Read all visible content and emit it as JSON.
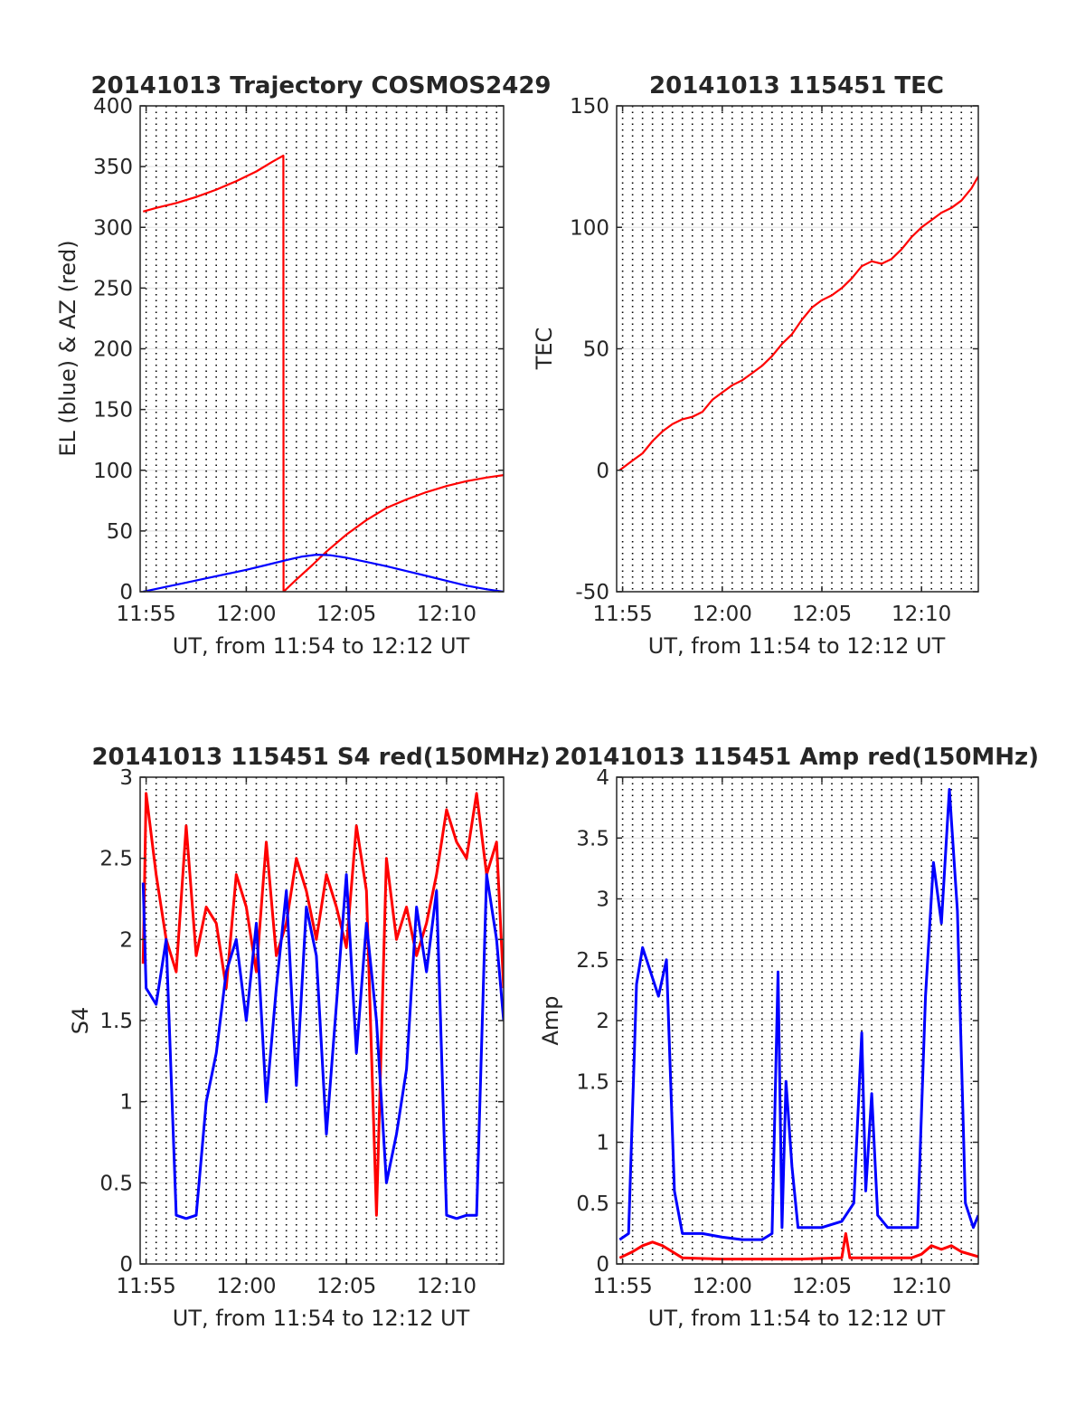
{
  "chart_data": [
    {
      "type": "line",
      "title": "20141013 Trajectory COSMOS2429",
      "xlabel": "UT, from 11:54 to 12:12 UT",
      "ylabel": "EL (blue) & AZ (red)",
      "xlim_minutes": [
        714.7,
        732.85
      ],
      "ylim": [
        0,
        400
      ],
      "xticks": [
        715,
        720,
        725,
        730
      ],
      "xtick_labels": [
        "11:55",
        "12:00",
        "12:05",
        "12:10"
      ],
      "yticks": [
        0,
        50,
        100,
        150,
        200,
        250,
        300,
        350,
        400
      ],
      "ytick_labels": [
        "0",
        "50",
        "100",
        "150",
        "200",
        "250",
        "300",
        "350",
        "400"
      ],
      "grid": "vertical dotted lines every 0.5 min, horizontal grid at y ticks",
      "series": [
        {
          "color": "#ff0000",
          "x_minutes": [
            714.85,
            715.5,
            716.5,
            717.5,
            718.5,
            719.5,
            720.5,
            721.3,
            721.85,
            721.86,
            722.5,
            723.3,
            724.0,
            725.0,
            726.0,
            727.0,
            728.0,
            729.0,
            730.0,
            731.0,
            732.0,
            732.85
          ],
          "y": [
            313,
            316,
            320,
            325,
            331,
            338,
            346,
            354,
            359,
            0,
            10,
            22,
            33,
            47,
            59,
            69,
            76,
            82,
            87,
            91,
            94,
            96
          ]
        },
        {
          "color": "#0000ff",
          "x_minutes": [
            714.85,
            716.0,
            717.0,
            718.0,
            719.0,
            720.0,
            721.0,
            722.0,
            722.8,
            723.5,
            724.2,
            725.0,
            726.0,
            727.0,
            728.0,
            729.0,
            730.0,
            731.0,
            732.0,
            732.85
          ],
          "y": [
            0,
            4,
            7.5,
            11,
            14.5,
            18,
            22,
            26,
            29,
            30.5,
            30,
            28,
            24.5,
            21,
            17,
            13,
            9,
            5,
            2,
            0
          ]
        }
      ]
    },
    {
      "type": "line",
      "title": "20141013 115451 TEC",
      "xlabel": "UT, from 11:54 to 12:12 UT",
      "ylabel": "TEC",
      "xlim_minutes": [
        714.7,
        732.85
      ],
      "ylim": [
        -50,
        150
      ],
      "xticks": [
        715,
        720,
        725,
        730
      ],
      "xtick_labels": [
        "11:55",
        "12:00",
        "12:05",
        "12:10"
      ],
      "yticks": [
        -50,
        0,
        50,
        100,
        150
      ],
      "ytick_labels": [
        "-50",
        "0",
        "50",
        "100",
        "150"
      ],
      "grid": "vertical dotted lines every 0.5 min, horizontal grid at y ticks",
      "series": [
        {
          "color": "#ff0000",
          "x_minutes": [
            714.85,
            715.5,
            716.0,
            716.5,
            717.0,
            717.5,
            718.0,
            718.5,
            719.0,
            719.5,
            720.0,
            720.5,
            721.0,
            721.5,
            722.0,
            722.5,
            723.0,
            723.5,
            724.0,
            724.5,
            725.0,
            725.5,
            726.0,
            726.5,
            727.0,
            727.5,
            728.0,
            728.5,
            729.0,
            729.5,
            730.0,
            730.5,
            731.0,
            731.5,
            732.0,
            732.5,
            732.85
          ],
          "y": [
            0,
            4,
            7,
            12,
            16,
            19,
            21,
            22,
            24,
            29,
            32,
            35,
            37,
            40,
            43,
            47,
            52,
            56,
            62,
            67,
            70,
            72,
            75,
            79,
            84,
            86,
            85,
            87,
            91,
            96,
            100,
            103,
            106,
            108,
            111,
            116,
            121
          ]
        }
      ]
    },
    {
      "type": "line",
      "title": "20141013 115451 S4 red(150MHz)",
      "xlabel": "UT, from 11:54 to 12:12 UT",
      "ylabel": "S4",
      "xlim_minutes": [
        714.7,
        732.85
      ],
      "ylim": [
        0,
        3
      ],
      "xticks": [
        715,
        720,
        725,
        730
      ],
      "xtick_labels": [
        "11:55",
        "12:00",
        "12:05",
        "12:10"
      ],
      "yticks": [
        0,
        0.5,
        1,
        1.5,
        2,
        2.5,
        3
      ],
      "ytick_labels": [
        "0",
        "0.5",
        "1",
        "1.5",
        "2",
        "2.5",
        "3"
      ],
      "grid": "vertical dotted lines every 0.5 min, horizontal grid at y ticks",
      "series": [
        {
          "color": "#ff0000",
          "x_minutes": [
            714.85,
            715.0,
            715.5,
            716.0,
            716.5,
            717.0,
            717.5,
            718.0,
            718.5,
            719.0,
            719.5,
            720.0,
            720.5,
            721.0,
            721.5,
            722.0,
            722.5,
            723.0,
            723.5,
            724.0,
            724.5,
            725.0,
            725.5,
            726.0,
            726.5,
            727.0,
            727.5,
            728.0,
            728.5,
            729.0,
            729.5,
            730.0,
            730.5,
            731.0,
            731.5,
            732.0,
            732.5,
            732.85
          ],
          "y": [
            1.85,
            2.9,
            2.4,
            2.0,
            1.8,
            2.7,
            1.9,
            2.2,
            2.1,
            1.7,
            2.4,
            2.2,
            1.8,
            2.6,
            1.9,
            2.1,
            2.5,
            2.3,
            2.0,
            2.4,
            2.2,
            1.95,
            2.7,
            2.3,
            0.3,
            2.5,
            2.0,
            2.2,
            1.9,
            2.1,
            2.4,
            2.8,
            2.6,
            2.5,
            2.9,
            2.4,
            2.6,
            1.7
          ]
        },
        {
          "color": "#0000ff",
          "x_minutes": [
            714.85,
            715.0,
            715.5,
            716.0,
            716.5,
            717.0,
            717.5,
            718.0,
            718.5,
            719.0,
            719.5,
            720.0,
            720.5,
            721.0,
            721.5,
            722.0,
            722.5,
            723.0,
            723.5,
            724.0,
            724.5,
            725.0,
            725.5,
            726.0,
            726.5,
            727.0,
            727.5,
            728.0,
            728.5,
            729.0,
            729.5,
            730.0,
            730.5,
            731.0,
            731.5,
            732.0,
            732.5,
            732.85
          ],
          "y": [
            2.35,
            1.7,
            1.6,
            2.0,
            0.3,
            0.28,
            0.3,
            1.0,
            1.3,
            1.8,
            2.0,
            1.5,
            2.1,
            1.0,
            1.7,
            2.3,
            1.1,
            2.2,
            1.9,
            0.8,
            1.6,
            2.4,
            1.3,
            2.1,
            1.5,
            0.5,
            0.8,
            1.2,
            2.2,
            1.8,
            2.3,
            0.3,
            0.28,
            0.3,
            0.3,
            2.4,
            2.0,
            1.5
          ]
        }
      ]
    },
    {
      "type": "line",
      "title": "20141013 115451 Amp red(150MHz)",
      "xlabel": "UT, from 11:54 to 12:12 UT",
      "ylabel": "Amp",
      "xlim_minutes": [
        714.7,
        732.85
      ],
      "ylim": [
        0,
        4
      ],
      "xticks": [
        715,
        720,
        725,
        730
      ],
      "xtick_labels": [
        "11:55",
        "12:00",
        "12:05",
        "12:10"
      ],
      "yticks": [
        0,
        0.5,
        1,
        1.5,
        2,
        2.5,
        3,
        3.5,
        4
      ],
      "ytick_labels": [
        "0",
        "0.5",
        "1",
        "1.5",
        "2",
        "2.5",
        "3",
        "3.5",
        "4"
      ],
      "grid": "vertical dotted lines every 0.5 min, horizontal grid at y ticks",
      "series": [
        {
          "color": "#ff0000",
          "x_minutes": [
            714.85,
            715.5,
            716.0,
            716.5,
            717.0,
            717.5,
            718.0,
            720.0,
            722.0,
            724.0,
            726.0,
            726.2,
            726.4,
            728.0,
            729.5,
            730.0,
            730.5,
            731.0,
            731.5,
            732.0,
            732.85
          ],
          "y": [
            0.05,
            0.1,
            0.15,
            0.18,
            0.15,
            0.1,
            0.05,
            0.04,
            0.04,
            0.04,
            0.05,
            0.25,
            0.05,
            0.05,
            0.05,
            0.08,
            0.15,
            0.12,
            0.15,
            0.1,
            0.06
          ]
        },
        {
          "color": "#0000ff",
          "x_minutes": [
            714.85,
            715.3,
            715.7,
            716.0,
            716.4,
            716.8,
            717.2,
            717.6,
            718.0,
            719.0,
            720.0,
            721.0,
            722.0,
            722.5,
            722.8,
            723.0,
            723.2,
            723.5,
            723.8,
            724.3,
            725.0,
            726.0,
            726.6,
            727.0,
            727.2,
            727.5,
            727.8,
            728.3,
            729.0,
            729.8,
            730.2,
            730.6,
            731.0,
            731.4,
            731.8,
            732.2,
            732.6,
            732.85
          ],
          "y": [
            0.2,
            0.25,
            2.3,
            2.6,
            2.4,
            2.2,
            2.5,
            0.6,
            0.25,
            0.25,
            0.22,
            0.2,
            0.2,
            0.25,
            2.4,
            0.3,
            1.5,
            0.8,
            0.3,
            0.3,
            0.3,
            0.35,
            0.5,
            1.9,
            0.6,
            1.4,
            0.4,
            0.3,
            0.3,
            0.3,
            2.2,
            3.3,
            2.8,
            3.9,
            2.9,
            0.5,
            0.3,
            0.4
          ]
        }
      ]
    }
  ]
}
